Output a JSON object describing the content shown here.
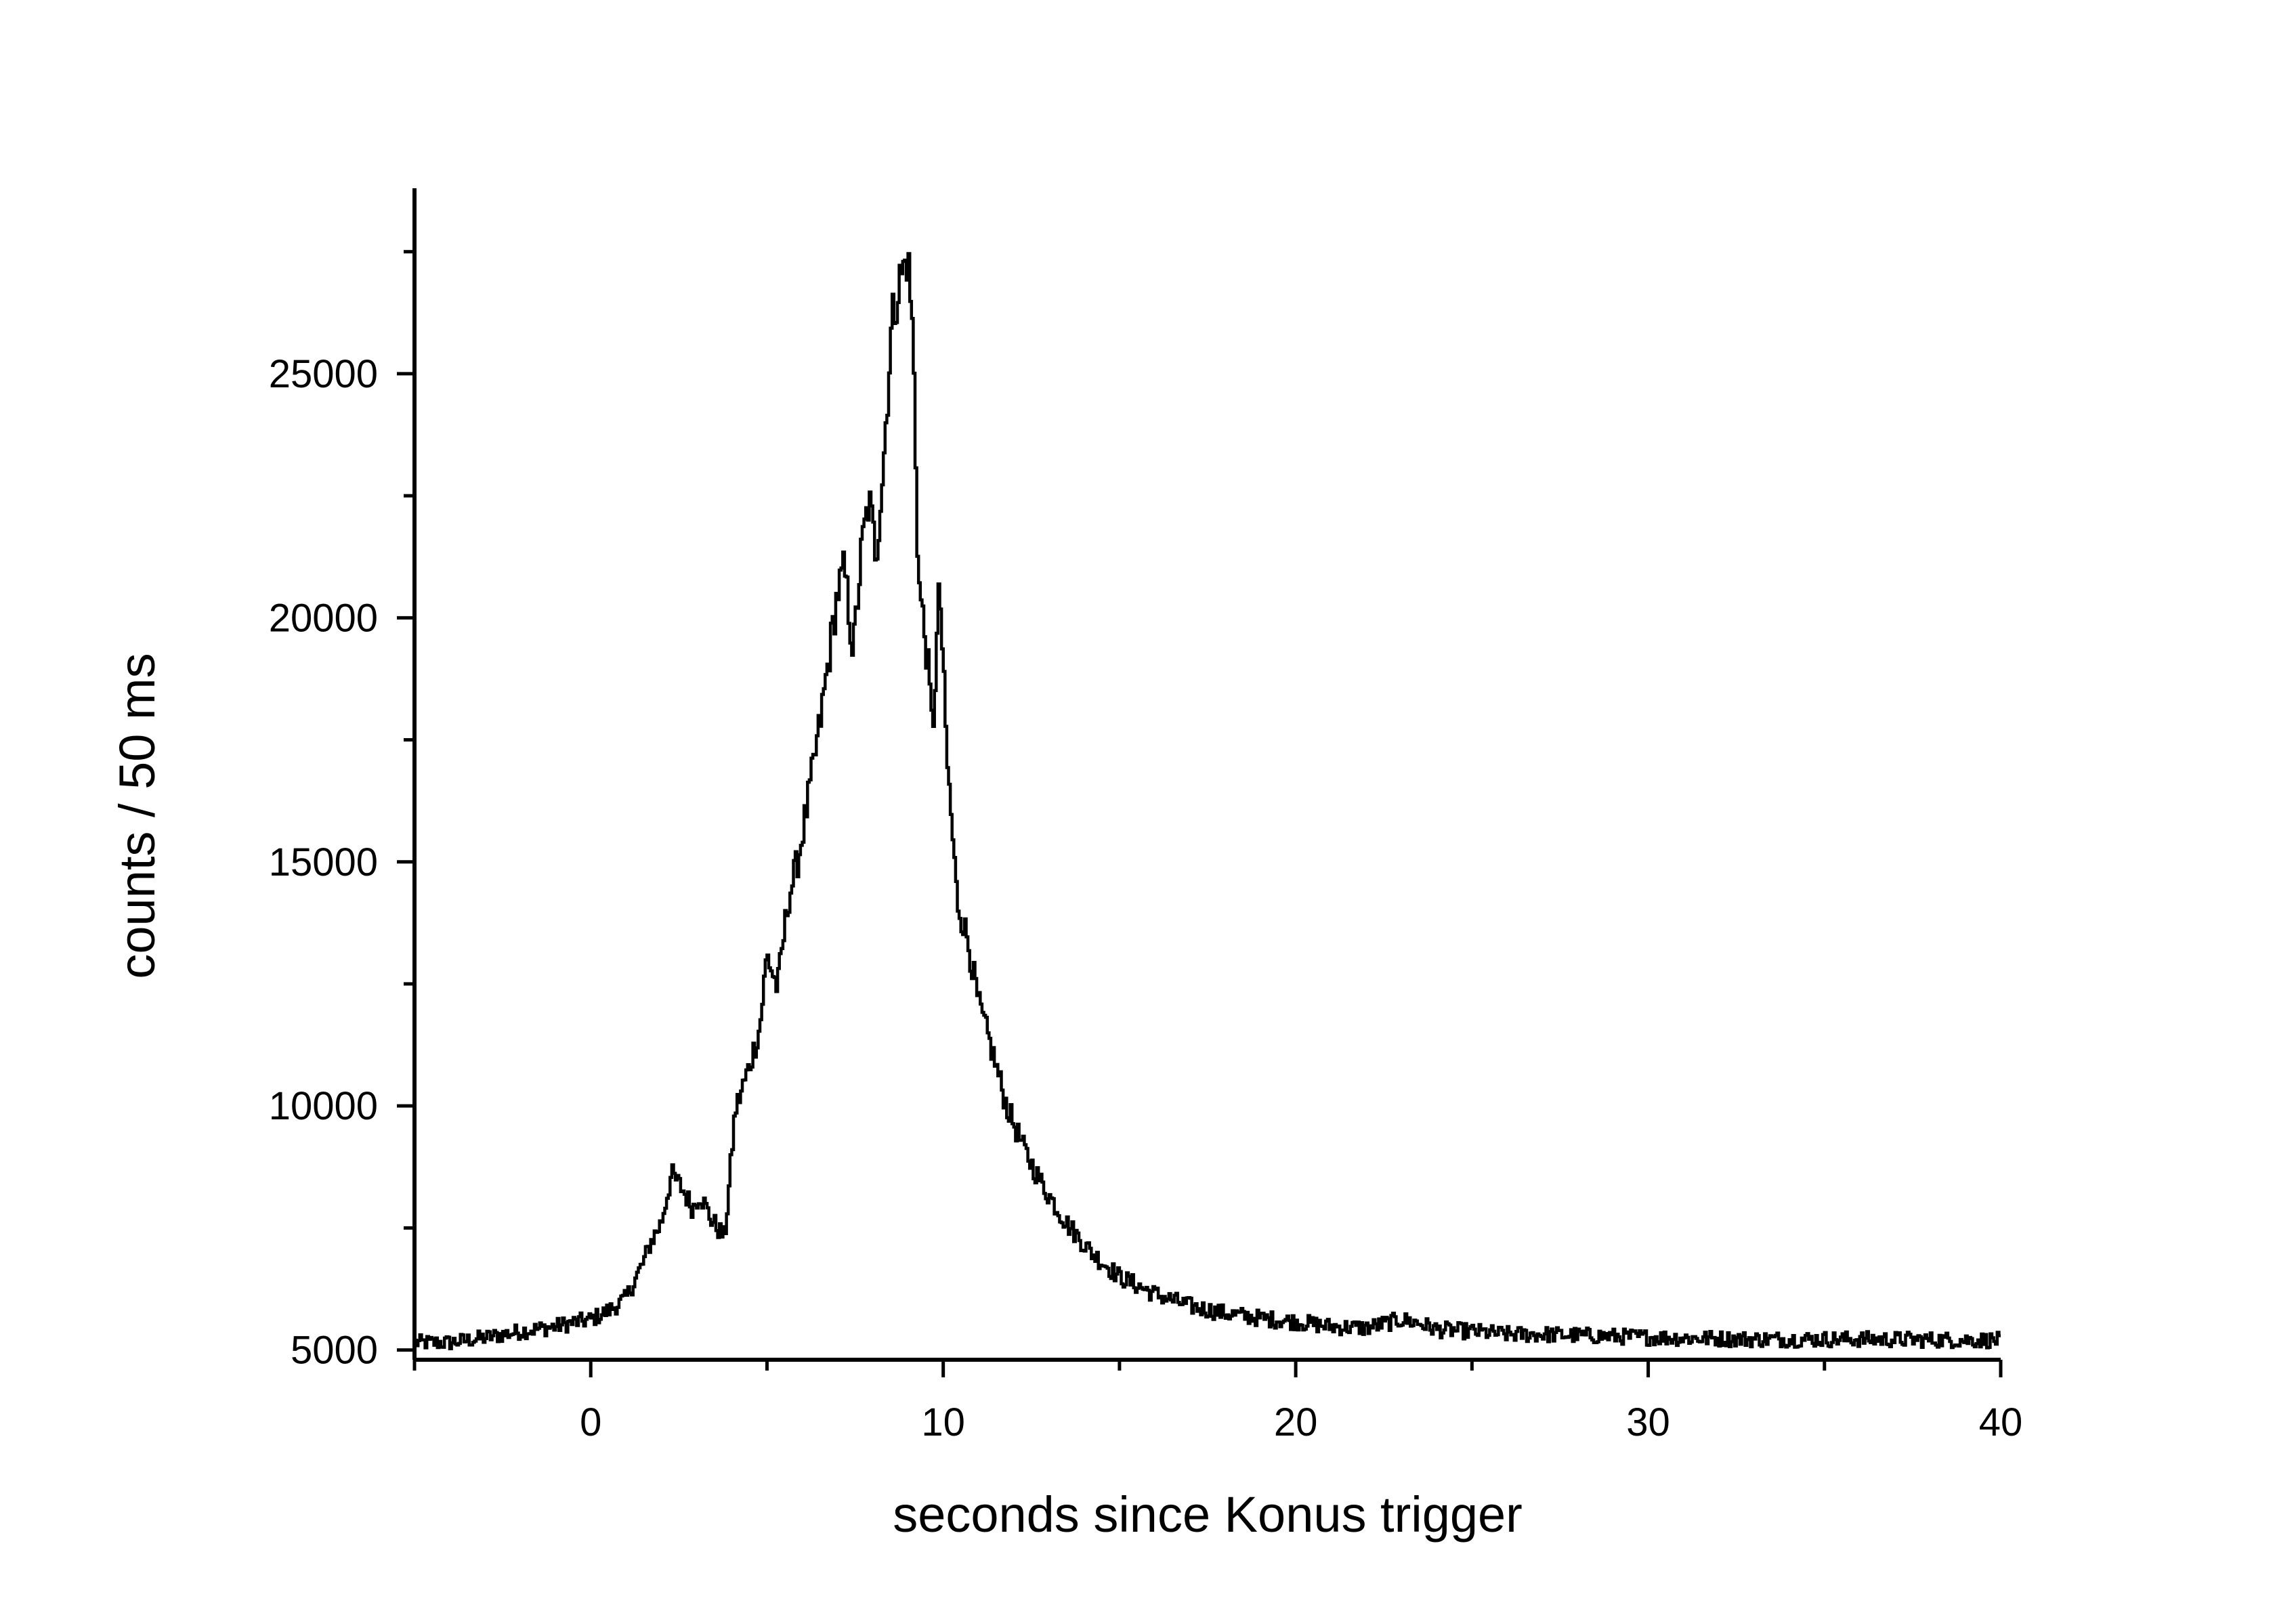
{
  "chart_data": {
    "type": "line",
    "style": "step",
    "title": "",
    "xlabel": "seconds since Konus trigger",
    "ylabel": "counts / 50 ms",
    "xlim": [
      -5,
      40
    ],
    "ylim": [
      4800,
      28800
    ],
    "x_ticks": [
      0,
      10,
      20,
      30,
      40
    ],
    "x_tick_labels": [
      "0",
      "10",
      "20",
      "30",
      "40"
    ],
    "y_ticks": [
      5000,
      10000,
      15000,
      20000,
      25000
    ],
    "y_tick_labels": [
      "5000",
      "10000",
      "15000",
      "20000",
      "25000"
    ],
    "x_minor_tick_step": 5,
    "y_minor_tick_step": 2500,
    "grid": false,
    "legend": "none",
    "line_color": "#000000",
    "bin_width_s": 0.05,
    "series": [
      {
        "x": [
          -5.0,
          -4.0,
          -3.0,
          -2.0,
          -1.0,
          -0.5,
          0.0,
          0.5,
          1.0,
          1.5,
          1.7,
          2.0,
          2.3,
          2.6,
          2.9,
          3.1,
          3.4,
          3.8,
          3.9,
          4.1,
          4.5,
          4.8,
          5.0,
          5.3,
          5.6,
          5.9,
          6.2,
          6.5,
          6.8,
          7.0,
          7.2,
          7.45,
          7.7,
          7.9,
          8.1,
          8.3,
          8.55,
          8.8,
          9.0,
          9.15,
          9.3,
          9.55,
          9.7,
          9.9,
          10.1,
          10.4,
          10.7,
          11.0,
          11.4,
          11.8,
          12.3,
          12.8,
          13.5,
          14.2,
          15.0,
          16.0,
          17.0,
          18.0,
          19.0,
          20.0,
          21.0,
          22.0,
          23.0,
          23.5,
          24.0,
          25.0,
          26.0,
          27.0,
          28.0,
          30.0,
          33.0,
          36.0,
          40.0
        ],
        "y": [
          5150,
          5150,
          5250,
          5380,
          5480,
          5560,
          5620,
          5800,
          6050,
          6800,
          7200,
          7600,
          8600,
          8300,
          7900,
          8200,
          7700,
          7300,
          8100,
          9900,
          10800,
          11600,
          13100,
          12400,
          14200,
          15100,
          16400,
          17800,
          19400,
          20500,
          21000,
          19300,
          21500,
          22400,
          21300,
          23100,
          26100,
          27000,
          27400,
          25700,
          20800,
          19200,
          17600,
          20700,
          17200,
          14200,
          13400,
          12100,
          11100,
          10000,
          9100,
          8400,
          7600,
          7000,
          6500,
          6150,
          5900,
          5750,
          5650,
          5580,
          5480,
          5450,
          5620,
          5550,
          5420,
          5380,
          5320,
          5320,
          5300,
          5260,
          5220,
          5220,
          5200
        ]
      }
    ]
  }
}
